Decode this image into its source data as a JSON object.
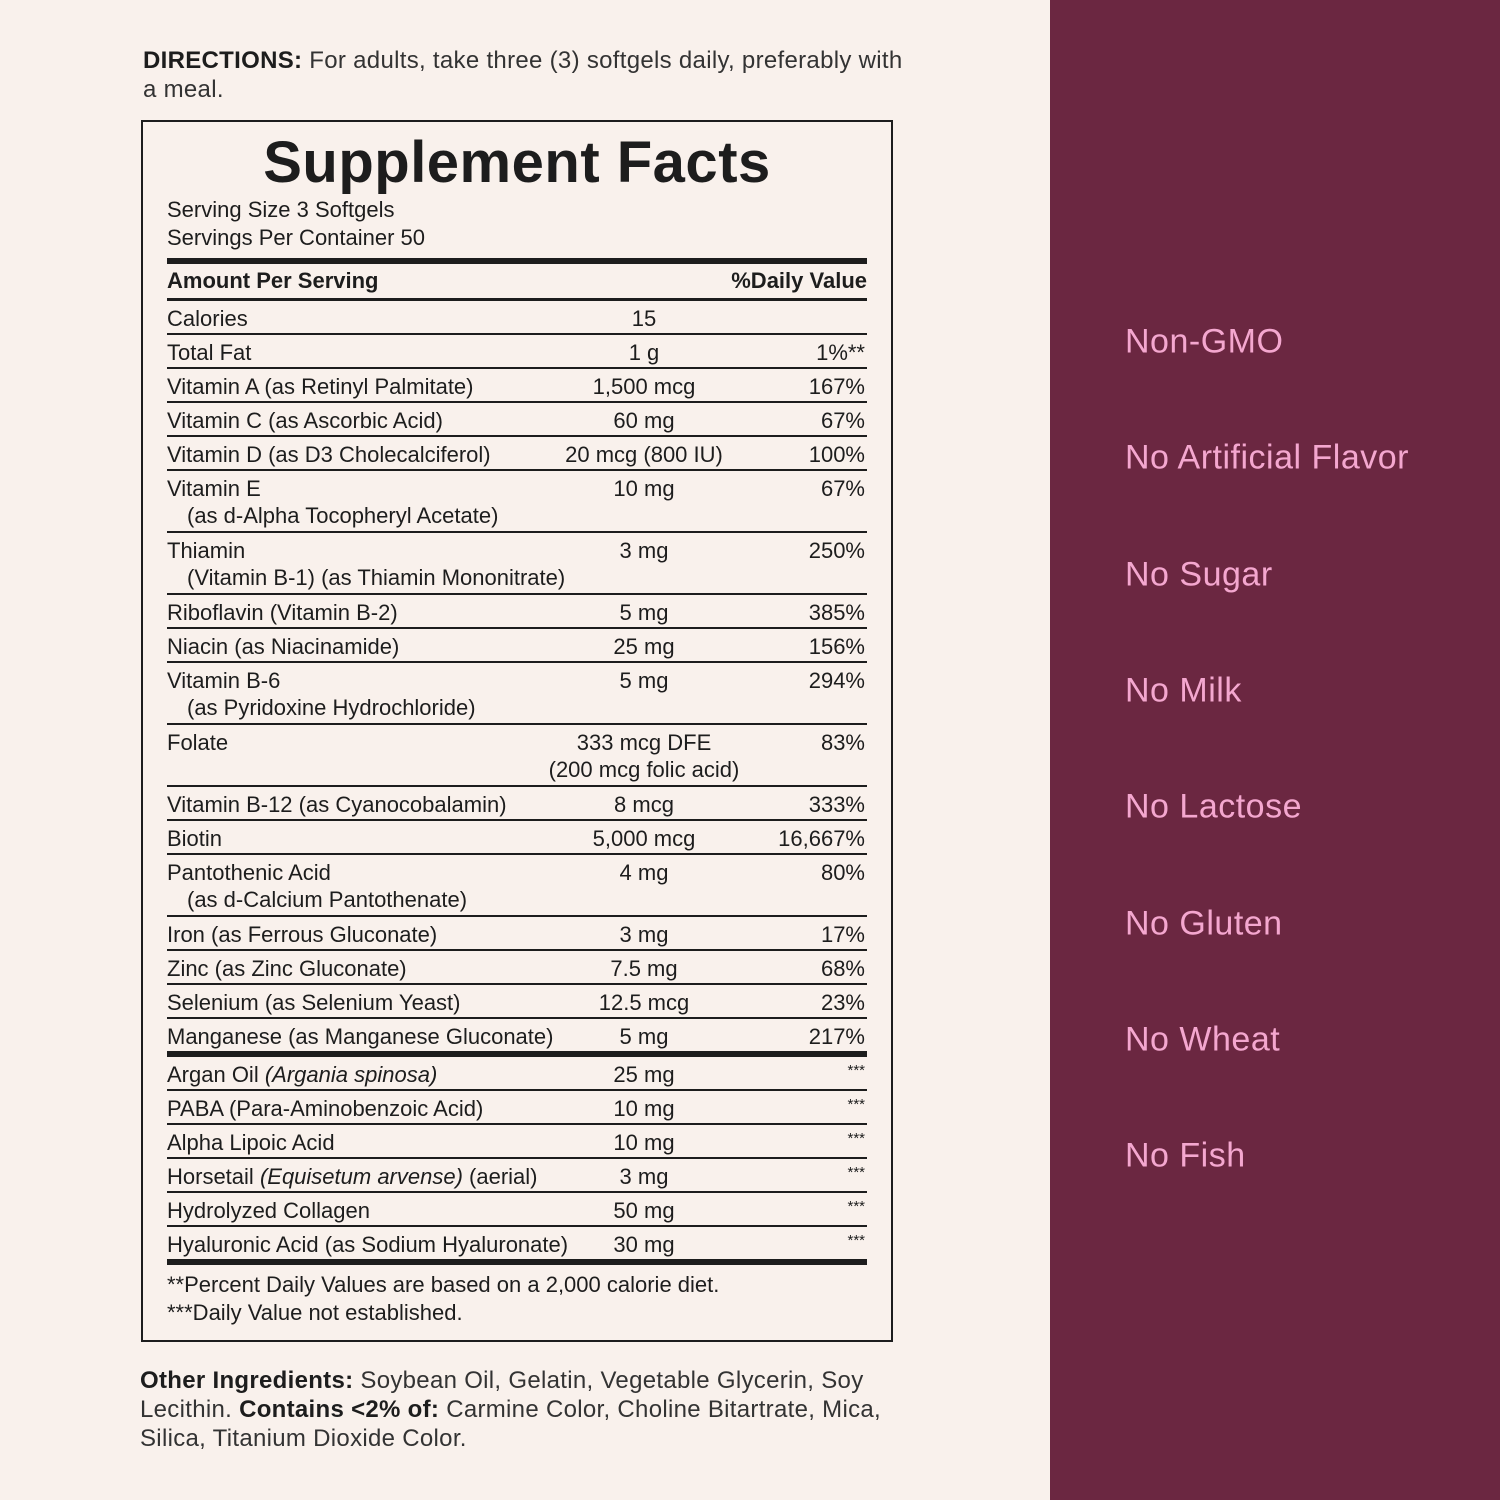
{
  "directions": {
    "label": "DIRECTIONS:",
    "text": "For adults, take three (3) softgels daily, preferably with a meal."
  },
  "facts": {
    "title": "Supplement Facts",
    "serving_size": "Serving Size 3 Softgels",
    "servings_per_container": "Servings Per Container 50",
    "header": {
      "amount": "Amount Per Serving",
      "dv": "%Daily Value"
    },
    "rows": [
      {
        "name": "Calories",
        "amount": "15"
      },
      {
        "name": "Total Fat",
        "amount": "1 g",
        "dv": "1%**"
      },
      {
        "name": "Vitamin A (as Retinyl Palmitate)",
        "amount": "1,500 mcg",
        "dv": "167%"
      },
      {
        "name": "Vitamin C (as Ascorbic Acid)",
        "amount": "60 mg",
        "dv": "67%"
      },
      {
        "name": "Vitamin D (as D3 Cholecalciferol)",
        "amount": "20 mcg (800 IU)",
        "dv": "100%"
      },
      {
        "name": "Vitamin E",
        "sub": "(as d-Alpha Tocopheryl Acetate)",
        "amount": "10 mg",
        "dv": "67%"
      },
      {
        "name": "Thiamin",
        "sub": "(Vitamin B-1) (as Thiamin Mononitrate)",
        "amount": "3 mg",
        "dv": "250%"
      },
      {
        "name": "Riboflavin (Vitamin B-2)",
        "amount": "5 mg",
        "dv": "385%"
      },
      {
        "name": "Niacin (as Niacinamide)",
        "amount": "25 mg",
        "dv": "156%"
      },
      {
        "name": "Vitamin B-6",
        "sub": "(as Pyridoxine Hydrochloride)",
        "amount": "5 mg",
        "dv": "294%"
      },
      {
        "name": "Folate",
        "amount": "333 mcg DFE",
        "amount_sub": "(200 mcg folic acid)",
        "dv": "83%"
      },
      {
        "name": "Vitamin B-12 (as Cyanocobalamin)",
        "amount": "8 mcg",
        "dv": "333%"
      },
      {
        "name": "Biotin",
        "amount": "5,000 mcg",
        "dv": "16,667%"
      },
      {
        "name": "Pantothenic Acid",
        "sub": "(as d-Calcium Pantothenate)",
        "amount": "4 mg",
        "dv": "80%"
      },
      {
        "name": "Iron (as Ferrous Gluconate)",
        "amount": "3 mg",
        "dv": "17%"
      },
      {
        "name": "Zinc (as Zinc Gluconate)",
        "amount": "7.5 mg",
        "dv": "68%"
      },
      {
        "name": "Selenium (as Selenium Yeast)",
        "amount": "12.5 mcg",
        "dv": "23%"
      },
      {
        "name": "Manganese (as Manganese Gluconate)",
        "amount": "5 mg",
        "dv": "217%"
      }
    ],
    "other_rows": [
      {
        "name": "Argan Oil",
        "italic": "(Argania spinosa)",
        "amount": "25 mg",
        "dv": "***"
      },
      {
        "name": "PABA (Para-Aminobenzoic Acid)",
        "amount": "10 mg",
        "dv": "***"
      },
      {
        "name": "Alpha Lipoic Acid",
        "amount": "10 mg",
        "dv": "***"
      },
      {
        "name": "Horsetail",
        "italic": "(Equisetum arvense)",
        "suffix": "(aerial)",
        "amount": "3 mg",
        "dv": "***"
      },
      {
        "name": "Hydrolyzed Collagen",
        "amount": "50 mg",
        "dv": "***"
      },
      {
        "name": "Hyaluronic Acid (as Sodium Hyaluronate)",
        "amount": "30 mg",
        "dv": "***"
      }
    ],
    "footnotes": [
      "**Percent Daily Values are based on a 2,000 calorie diet.",
      "***Daily Value not established."
    ]
  },
  "other_ingredients": {
    "label": "Other Ingredients:",
    "text": "Soybean Oil, Gelatin, Vegetable Glycerin, Soy Lecithin.",
    "contains_label": "Contains <2% of:",
    "contains_text": "Carmine Color, Choline Bitartrate, Mica, Silica, Titanium Dioxide Color."
  },
  "claims": [
    "Non-GMO",
    "No Artificial Flavor",
    "No Sugar",
    "No Milk",
    "No Lactose",
    "No Gluten",
    "No Wheat",
    "No Fish"
  ]
}
